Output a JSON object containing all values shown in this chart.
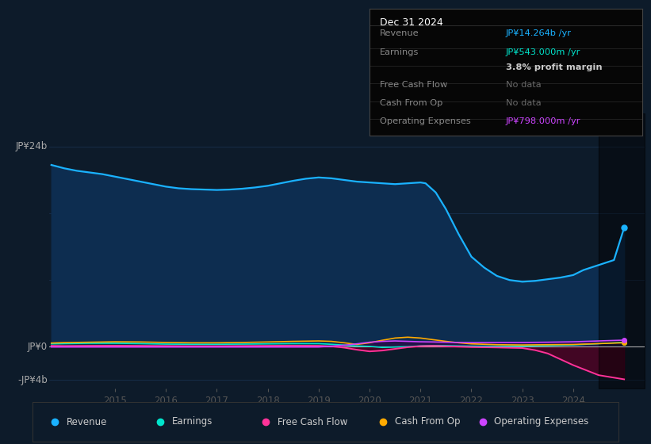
{
  "bg_color": "#0d1b2a",
  "plot_bg_color": "#0d1b2a",
  "grid_color": "#1e3a5f",
  "ylim": [
    -5,
    28
  ],
  "xlim_start": 2013.7,
  "xlim_end": 2025.4,
  "xticks": [
    2015,
    2016,
    2017,
    2018,
    2019,
    2020,
    2021,
    2022,
    2023,
    2024
  ],
  "revenue_color": "#1ab2ff",
  "earnings_color": "#00e5cc",
  "fcf_color": "#ff3399",
  "cashop_color": "#ffaa00",
  "opex_color": "#cc44ff",
  "revenue": [
    [
      2013.75,
      21.8
    ],
    [
      2014.0,
      21.4
    ],
    [
      2014.25,
      21.1
    ],
    [
      2014.5,
      20.9
    ],
    [
      2014.75,
      20.7
    ],
    [
      2015.0,
      20.4
    ],
    [
      2015.25,
      20.1
    ],
    [
      2015.5,
      19.8
    ],
    [
      2015.75,
      19.5
    ],
    [
      2016.0,
      19.2
    ],
    [
      2016.25,
      19.0
    ],
    [
      2016.5,
      18.9
    ],
    [
      2016.75,
      18.85
    ],
    [
      2017.0,
      18.8
    ],
    [
      2017.25,
      18.85
    ],
    [
      2017.5,
      18.95
    ],
    [
      2017.75,
      19.1
    ],
    [
      2018.0,
      19.3
    ],
    [
      2018.25,
      19.6
    ],
    [
      2018.5,
      19.9
    ],
    [
      2018.75,
      20.15
    ],
    [
      2019.0,
      20.3
    ],
    [
      2019.25,
      20.2
    ],
    [
      2019.5,
      20.0
    ],
    [
      2019.75,
      19.8
    ],
    [
      2020.0,
      19.7
    ],
    [
      2020.25,
      19.6
    ],
    [
      2020.5,
      19.5
    ],
    [
      2020.75,
      19.6
    ],
    [
      2021.0,
      19.7
    ],
    [
      2021.1,
      19.6
    ],
    [
      2021.3,
      18.5
    ],
    [
      2021.5,
      16.5
    ],
    [
      2021.75,
      13.5
    ],
    [
      2022.0,
      10.8
    ],
    [
      2022.25,
      9.5
    ],
    [
      2022.5,
      8.5
    ],
    [
      2022.75,
      8.0
    ],
    [
      2023.0,
      7.8
    ],
    [
      2023.25,
      7.9
    ],
    [
      2023.5,
      8.1
    ],
    [
      2023.75,
      8.3
    ],
    [
      2024.0,
      8.6
    ],
    [
      2024.1,
      8.9
    ],
    [
      2024.2,
      9.2
    ],
    [
      2024.4,
      9.6
    ],
    [
      2024.6,
      10.0
    ],
    [
      2024.8,
      10.4
    ],
    [
      2025.0,
      14.264
    ]
  ],
  "earnings": [
    [
      2013.75,
      0.35
    ],
    [
      2014.0,
      0.38
    ],
    [
      2014.5,
      0.42
    ],
    [
      2015.0,
      0.42
    ],
    [
      2015.5,
      0.38
    ],
    [
      2016.0,
      0.32
    ],
    [
      2016.5,
      0.3
    ],
    [
      2017.0,
      0.3
    ],
    [
      2017.5,
      0.32
    ],
    [
      2018.0,
      0.35
    ],
    [
      2018.5,
      0.38
    ],
    [
      2019.0,
      0.38
    ],
    [
      2019.25,
      0.3
    ],
    [
      2019.5,
      0.2
    ],
    [
      2019.75,
      0.1
    ],
    [
      2020.0,
      0.05
    ],
    [
      2020.25,
      -0.08
    ],
    [
      2020.5,
      -0.03
    ],
    [
      2020.75,
      0.02
    ],
    [
      2021.0,
      0.1
    ],
    [
      2021.25,
      0.15
    ],
    [
      2021.5,
      0.13
    ],
    [
      2021.75,
      0.1
    ],
    [
      2022.0,
      0.08
    ],
    [
      2022.5,
      0.06
    ],
    [
      2023.0,
      0.1
    ],
    [
      2023.5,
      0.15
    ],
    [
      2024.0,
      0.22
    ],
    [
      2024.5,
      0.38
    ],
    [
      2025.0,
      0.543
    ]
  ],
  "fcf": [
    [
      2013.75,
      0.12
    ],
    [
      2014.0,
      0.1
    ],
    [
      2014.5,
      0.12
    ],
    [
      2015.0,
      0.13
    ],
    [
      2015.5,
      0.12
    ],
    [
      2016.0,
      0.1
    ],
    [
      2016.5,
      0.08
    ],
    [
      2017.0,
      0.08
    ],
    [
      2017.5,
      0.1
    ],
    [
      2018.0,
      0.12
    ],
    [
      2018.5,
      0.14
    ],
    [
      2019.0,
      0.12
    ],
    [
      2019.25,
      0.06
    ],
    [
      2019.5,
      -0.1
    ],
    [
      2019.75,
      -0.35
    ],
    [
      2020.0,
      -0.55
    ],
    [
      2020.25,
      -0.45
    ],
    [
      2020.5,
      -0.25
    ],
    [
      2020.75,
      -0.05
    ],
    [
      2021.0,
      0.08
    ],
    [
      2021.25,
      0.12
    ],
    [
      2021.5,
      0.06
    ],
    [
      2021.75,
      0.02
    ],
    [
      2022.0,
      -0.03
    ],
    [
      2022.5,
      -0.08
    ],
    [
      2023.0,
      -0.15
    ],
    [
      2023.25,
      -0.4
    ],
    [
      2023.5,
      -0.8
    ],
    [
      2023.75,
      -1.5
    ],
    [
      2024.0,
      -2.2
    ],
    [
      2024.25,
      -2.8
    ],
    [
      2024.5,
      -3.4
    ],
    [
      2025.0,
      -3.9
    ]
  ],
  "cashop": [
    [
      2013.75,
      0.45
    ],
    [
      2014.0,
      0.5
    ],
    [
      2014.5,
      0.55
    ],
    [
      2015.0,
      0.6
    ],
    [
      2015.5,
      0.58
    ],
    [
      2016.0,
      0.52
    ],
    [
      2016.5,
      0.48
    ],
    [
      2017.0,
      0.48
    ],
    [
      2017.5,
      0.52
    ],
    [
      2018.0,
      0.58
    ],
    [
      2018.5,
      0.65
    ],
    [
      2019.0,
      0.7
    ],
    [
      2019.25,
      0.65
    ],
    [
      2019.5,
      0.48
    ],
    [
      2019.75,
      0.28
    ],
    [
      2020.0,
      0.48
    ],
    [
      2020.25,
      0.78
    ],
    [
      2020.5,
      1.05
    ],
    [
      2020.75,
      1.15
    ],
    [
      2021.0,
      1.05
    ],
    [
      2021.25,
      0.85
    ],
    [
      2021.5,
      0.65
    ],
    [
      2021.75,
      0.48
    ],
    [
      2022.0,
      0.35
    ],
    [
      2022.5,
      0.25
    ],
    [
      2023.0,
      0.22
    ],
    [
      2023.5,
      0.25
    ],
    [
      2024.0,
      0.28
    ],
    [
      2024.5,
      0.38
    ],
    [
      2025.0,
      0.48
    ]
  ],
  "opex": [
    [
      2013.75,
      -0.02
    ],
    [
      2014.0,
      -0.02
    ],
    [
      2015.0,
      -0.02
    ],
    [
      2016.0,
      -0.02
    ],
    [
      2017.0,
      -0.02
    ],
    [
      2018.0,
      -0.02
    ],
    [
      2018.75,
      -0.02
    ],
    [
      2019.0,
      -0.02
    ],
    [
      2019.25,
      0.08
    ],
    [
      2019.5,
      0.18
    ],
    [
      2019.75,
      0.35
    ],
    [
      2020.0,
      0.55
    ],
    [
      2020.25,
      0.65
    ],
    [
      2020.5,
      0.7
    ],
    [
      2020.75,
      0.65
    ],
    [
      2021.0,
      0.6
    ],
    [
      2021.25,
      0.58
    ],
    [
      2021.5,
      0.55
    ],
    [
      2021.75,
      0.52
    ],
    [
      2022.0,
      0.5
    ],
    [
      2022.5,
      0.52
    ],
    [
      2023.0,
      0.52
    ],
    [
      2023.5,
      0.55
    ],
    [
      2024.0,
      0.6
    ],
    [
      2024.5,
      0.7
    ],
    [
      2025.0,
      0.798
    ]
  ],
  "legend_items": [
    {
      "label": "Revenue",
      "color": "#1ab2ff"
    },
    {
      "label": "Earnings",
      "color": "#00e5cc"
    },
    {
      "label": "Free Cash Flow",
      "color": "#ff3399"
    },
    {
      "label": "Cash From Op",
      "color": "#ffaa00"
    },
    {
      "label": "Operating Expenses",
      "color": "#cc44ff"
    }
  ],
  "info_rows": [
    {
      "label": "Revenue",
      "value": "JP¥14.264b /yr",
      "value_color": "#1ab2ff"
    },
    {
      "label": "Earnings",
      "value": "JP¥543.000m /yr",
      "value_color": "#00e5cc"
    },
    {
      "label": "",
      "value": "3.8% profit margin",
      "value_color": "#cccccc"
    },
    {
      "label": "Free Cash Flow",
      "value": "No data",
      "value_color": "#666666"
    },
    {
      "label": "Cash From Op",
      "value": "No data",
      "value_color": "#666666"
    },
    {
      "label": "Operating Expenses",
      "value": "JP¥798.000m /yr",
      "value_color": "#cc44ff"
    }
  ]
}
